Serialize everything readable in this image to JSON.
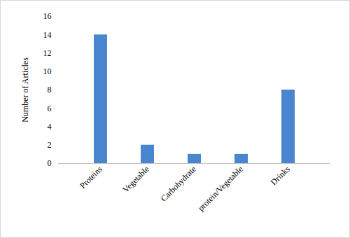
{
  "chart_data": {
    "type": "bar",
    "y_label": "Number of Articles",
    "categories": [
      "Proteins",
      "Vegetable",
      "Carbohydrate",
      "protein/Vegetable",
      "Drinks"
    ],
    "values": [
      14,
      2,
      1,
      1,
      8
    ],
    "color": "#4a86cf",
    "ylim": [
      0,
      16
    ],
    "yticks": [
      0,
      2,
      4,
      6,
      8,
      10,
      12,
      14,
      16
    ],
    "grid": false
  }
}
